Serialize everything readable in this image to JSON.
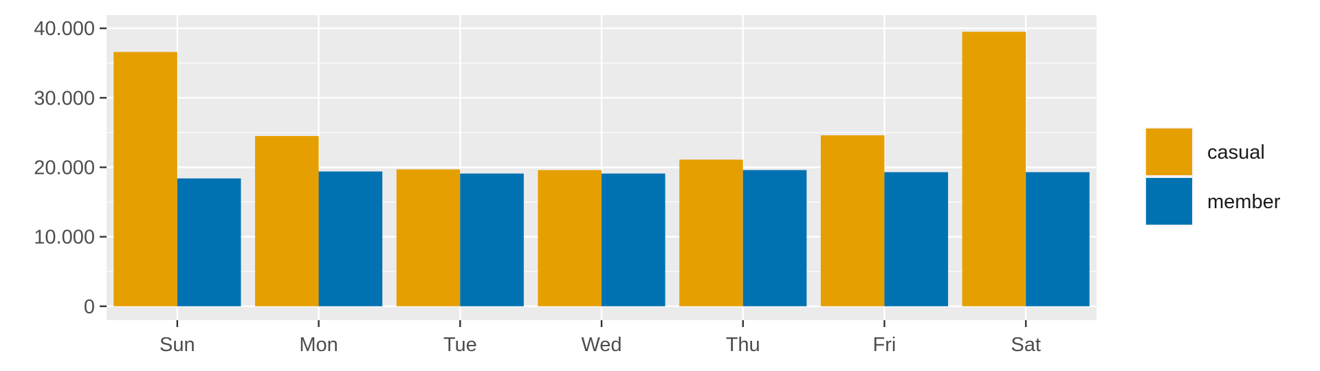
{
  "chart_data": {
    "type": "bar",
    "categories": [
      "Sun",
      "Mon",
      "Tue",
      "Wed",
      "Thu",
      "Fri",
      "Sat"
    ],
    "series": [
      {
        "name": "casual",
        "color": "#E69F00",
        "values": [
          36600,
          24500,
          19700,
          19600,
          21100,
          24600,
          39500
        ]
      },
      {
        "name": "member",
        "color": "#0072B2",
        "values": [
          18400,
          19400,
          19100,
          19100,
          19600,
          19300,
          19300
        ]
      }
    ],
    "y_ticks": [
      0,
      10000,
      20000,
      30000,
      40000
    ],
    "y_tick_labels": [
      "0",
      "10.000",
      "20.000",
      "30.000",
      "40.000"
    ],
    "ylim": [
      -2000,
      41900
    ],
    "grid": true,
    "legend_position": "right",
    "background": "#EBEBEB",
    "title": "",
    "xlabel": "",
    "ylabel": ""
  }
}
